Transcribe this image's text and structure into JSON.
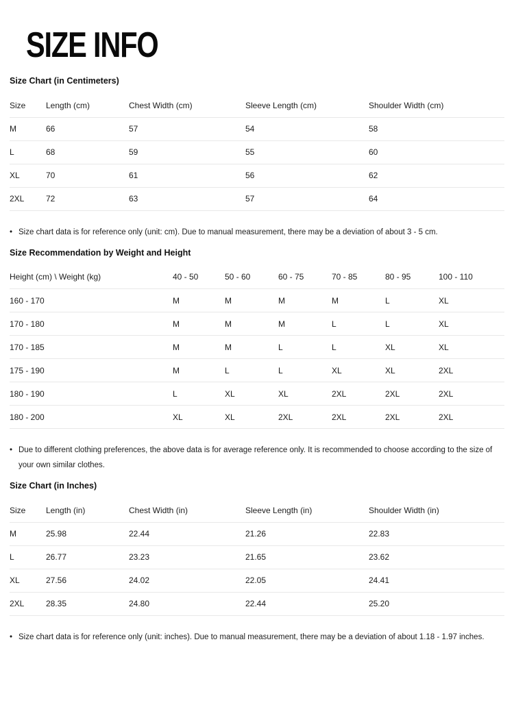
{
  "title": "SIZE INFO",
  "bullet_icon": "•",
  "colors": {
    "background": "#ffffff",
    "text": "#1c1c1c",
    "title": "#0a0a0a",
    "divider": "#e8e8e8"
  },
  "sections": {
    "cm": {
      "heading": "Size Chart (in Centimeters)",
      "table": {
        "headers": [
          "Size",
          "Length (cm)",
          "Chest Width (cm)",
          "Sleeve Length (cm)",
          "Shoulder Width (cm)"
        ],
        "rows": [
          [
            "M",
            "66",
            "57",
            "54",
            "58"
          ],
          [
            "L",
            "68",
            "59",
            "55",
            "60"
          ],
          [
            "XL",
            "70",
            "61",
            "56",
            "62"
          ],
          [
            "2XL",
            "72",
            "63",
            "57",
            "64"
          ]
        ]
      },
      "note": "Size chart data is for reference only (unit: cm). Due to manual measurement, there may be a deviation of about 3 - 5 cm."
    },
    "recommendation": {
      "heading": "Size Recommendation by Weight and Height",
      "table": {
        "headers": [
          "Height (cm) \\ Weight (kg)",
          "40 - 50",
          "50 - 60",
          "60 - 75",
          "70 - 85",
          "80 - 95",
          "100 - 110"
        ],
        "rows": [
          [
            "160 - 170",
            "M",
            "M",
            "M",
            "M",
            "L",
            "XL"
          ],
          [
            "170 - 180",
            "M",
            "M",
            "M",
            "L",
            "L",
            "XL"
          ],
          [
            "170 - 185",
            "M",
            "M",
            "L",
            "L",
            "XL",
            "XL"
          ],
          [
            "175 - 190",
            "M",
            "L",
            "L",
            "XL",
            "XL",
            "2XL"
          ],
          [
            "180 - 190",
            "L",
            "XL",
            "XL",
            "2XL",
            "2XL",
            "2XL"
          ],
          [
            "180 - 200",
            "XL",
            "XL",
            "2XL",
            "2XL",
            "2XL",
            "2XL"
          ]
        ]
      },
      "note": "Due to different clothing preferences, the above data is for average reference only. It is recommended to choose according to the size of your own similar clothes."
    },
    "inches": {
      "heading": "Size Chart (in Inches)",
      "table": {
        "headers": [
          "Size",
          "Length (in)",
          "Chest Width (in)",
          "Sleeve Length (in)",
          "Shoulder Width (in)"
        ],
        "rows": [
          [
            "M",
            "25.98",
            "22.44",
            "21.26",
            "22.83"
          ],
          [
            "L",
            "26.77",
            "23.23",
            "21.65",
            "23.62"
          ],
          [
            "XL",
            "27.56",
            "24.02",
            "22.05",
            "24.41"
          ],
          [
            "2XL",
            "28.35",
            "24.80",
            "22.44",
            "25.20"
          ]
        ]
      },
      "note": "Size chart data is for reference only (unit: inches). Due to manual measurement, there may be a deviation of about 1.18 - 1.97 inches."
    }
  }
}
